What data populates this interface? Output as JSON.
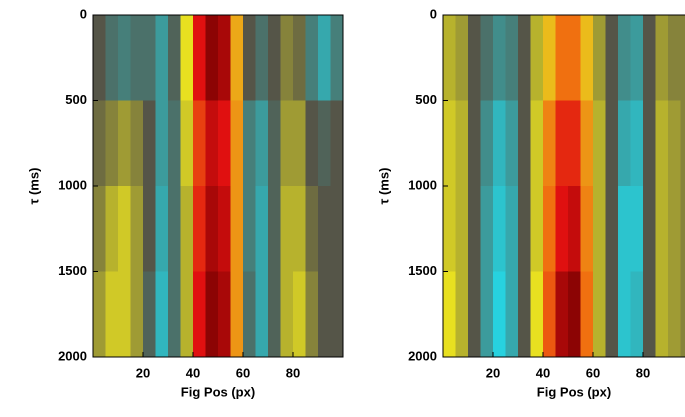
{
  "chart_data": [
    {
      "type": "heatmap",
      "xlabel": "Fig Pos (px)",
      "ylabel": "τ (ms)",
      "xlim": [
        0,
        100
      ],
      "ylim": [
        0,
        2000
      ],
      "xticks": [
        20,
        40,
        60,
        80
      ],
      "yticks": [
        0,
        500,
        1000,
        1500,
        2000
      ],
      "y_inverted": true,
      "xbins": [
        0,
        5,
        10,
        15,
        20,
        25,
        30,
        35,
        40,
        45,
        50,
        55,
        60,
        65,
        70,
        75,
        80,
        85,
        90,
        95,
        100
      ],
      "ybins": [
        0,
        500,
        1000,
        1500,
        2000
      ],
      "colorscale": [
        [
          -1,
          "#22e0f0"
        ],
        [
          0,
          "#555548"
        ],
        [
          0.6,
          "#e8e020"
        ],
        [
          1.2,
          "#f07010"
        ],
        [
          1.6,
          "#e01010"
        ],
        [
          2,
          "#700000"
        ]
      ],
      "z": [
        [
          0,
          -0.2,
          -0.3,
          -0.2,
          -0.2,
          -0.5,
          -0.1,
          0.6,
          1.6,
          1.9,
          1.8,
          0.9,
          0,
          -0.2,
          0,
          0.2,
          0.1,
          -0.3,
          -0.6,
          -0.3
        ],
        [
          0.1,
          0.2,
          0.3,
          0.2,
          0,
          -0.5,
          -0.2,
          0.5,
          1.4,
          1.7,
          1.6,
          1.0,
          -0.3,
          -0.5,
          -0.1,
          0.3,
          0.3,
          0,
          -0.1,
          0
        ],
        [
          0.2,
          0.4,
          0.5,
          0.3,
          0,
          -0.6,
          -0.2,
          0.4,
          1.5,
          1.8,
          1.7,
          1.0,
          -0.3,
          -0.6,
          -0.1,
          0.4,
          0.4,
          0.1,
          0,
          0
        ],
        [
          0.3,
          0.5,
          0.5,
          0.3,
          -0.1,
          -0.7,
          -0.2,
          0.4,
          1.6,
          1.9,
          1.8,
          1.0,
          -0.2,
          -0.6,
          -0.1,
          0.4,
          0.5,
          0.2,
          0,
          0
        ]
      ]
    },
    {
      "type": "heatmap",
      "xlabel": "Fig Pos (px)",
      "ylabel": "τ (ms)",
      "xlim": [
        0,
        100
      ],
      "ylim": [
        0,
        2000
      ],
      "xticks": [
        20,
        40,
        60,
        80
      ],
      "yticks": [
        0,
        500,
        1000,
        1500,
        2000
      ],
      "y_inverted": true,
      "xbins": [
        0,
        5,
        10,
        15,
        20,
        25,
        30,
        35,
        40,
        45,
        50,
        55,
        60,
        65,
        70,
        75,
        80,
        85,
        90,
        95,
        100
      ],
      "ybins": [
        0,
        500,
        1000,
        1500,
        2000
      ],
      "colorscale": [
        [
          -1,
          "#22e0f0"
        ],
        [
          0,
          "#555548"
        ],
        [
          0.6,
          "#e8e020"
        ],
        [
          1.2,
          "#f07010"
        ],
        [
          1.6,
          "#e01010"
        ],
        [
          2,
          "#700000"
        ]
      ],
      "z": [
        [
          0.4,
          0.3,
          0,
          -0.2,
          -0.4,
          -0.3,
          0,
          0.4,
          0.8,
          1.2,
          1.2,
          0.8,
          0.3,
          0,
          -0.4,
          -0.5,
          0,
          0.3,
          0.2,
          0.2
        ],
        [
          0.5,
          0.4,
          0,
          -0.4,
          -0.7,
          -0.5,
          0,
          0.5,
          1.1,
          1.5,
          1.5,
          1.0,
          0.4,
          0,
          -0.6,
          -0.7,
          0,
          0.4,
          0.3,
          0.2
        ],
        [
          0.5,
          0.4,
          0,
          -0.5,
          -0.8,
          -0.6,
          0,
          0.5,
          1.2,
          1.6,
          1.7,
          1.1,
          0.4,
          0,
          -0.8,
          -0.8,
          0,
          0.4,
          0.3,
          0.2
        ],
        [
          0.6,
          0.4,
          0,
          -0.5,
          -0.9,
          -0.6,
          0,
          0.6,
          1.3,
          1.8,
          1.9,
          1.2,
          0.4,
          0,
          -0.8,
          -0.7,
          0,
          0.4,
          0.3,
          0.2
        ]
      ]
    }
  ]
}
